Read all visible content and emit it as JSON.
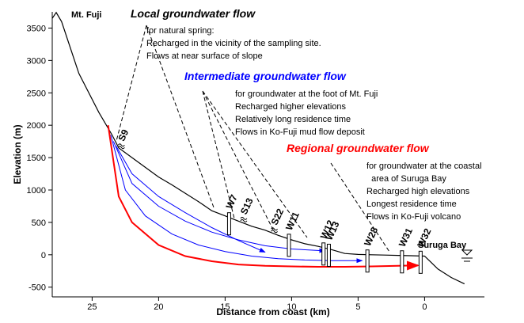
{
  "chart_data": {
    "type": "line",
    "xlabel": "Distance from coast (km)",
    "ylabel": "Elevation (m)",
    "xlim": [
      28,
      -4.5
    ],
    "ylim": [
      -650,
      3750
    ],
    "xticks": [
      25,
      20,
      15,
      10,
      5,
      0
    ],
    "yticks": [
      -500,
      0,
      500,
      1000,
      1500,
      2000,
      2500,
      3000,
      3500
    ],
    "series": [
      {
        "color": "#000000",
        "x": [
          28,
          27.7,
          27.3,
          26,
          24.5,
          23.5,
          23,
          22,
          21,
          20,
          19,
          18,
          17,
          16,
          15,
          14,
          13,
          12,
          11,
          10,
          9,
          8,
          7,
          6,
          5,
          4,
          3,
          2,
          1,
          0,
          -0.5,
          -1,
          -2,
          -3
        ],
        "values": [
          3650,
          3740,
          3600,
          2800,
          2200,
          1850,
          1650,
          1500,
          1350,
          1200,
          1080,
          950,
          820,
          680,
          600,
          520,
          440,
          380,
          300,
          230,
          170,
          130,
          80,
          20,
          5,
          0,
          -5,
          -10,
          -15,
          -20,
          -120,
          -220,
          -350,
          -450
        ]
      },
      {
        "color": "#ff0000",
        "x": [
          23.8,
          23,
          22,
          20,
          18,
          16,
          14,
          12,
          10,
          8,
          6,
          4,
          2,
          0.5
        ],
        "values": [
          2000,
          900,
          500,
          150,
          -20,
          -100,
          -150,
          -170,
          -180,
          -185,
          -185,
          -180,
          -170,
          -165
        ]
      },
      {
        "color": "#0000ff",
        "x": [
          23.6,
          22.5,
          21,
          19,
          17,
          15,
          13,
          11,
          9,
          7,
          4.7
        ],
        "values": [
          1850,
          1000,
          600,
          320,
          150,
          50,
          -20,
          -60,
          -80,
          -90,
          -90
        ]
      },
      {
        "color": "#0000ff",
        "x": [
          23.4,
          22,
          20,
          18,
          16,
          14,
          12,
          10,
          7.5
        ],
        "values": [
          1750,
          1100,
          750,
          520,
          350,
          230,
          140,
          90,
          60
        ]
      },
      {
        "color": "#0000ff",
        "x": [
          23.2,
          22,
          20,
          18,
          16,
          14,
          12
        ],
        "values": [
          1680,
          1250,
          900,
          650,
          420,
          220,
          40
        ]
      }
    ],
    "sites": [
      {
        "label": "S9",
        "x": 22.8,
        "kind": "spring"
      },
      {
        "label": "W7",
        "x": 14.7,
        "kind": "well"
      },
      {
        "label": "S13",
        "x": 13.6,
        "kind": "spring"
      },
      {
        "label": "S22",
        "x": 11.3,
        "kind": "spring"
      },
      {
        "label": "W11",
        "x": 10.2,
        "kind": "well"
      },
      {
        "label": "W12",
        "x": 7.6,
        "kind": "well"
      },
      {
        "label": "W13",
        "x": 7.2,
        "kind": "well"
      },
      {
        "label": "W28",
        "x": 4.3,
        "kind": "well"
      },
      {
        "label": "W31",
        "x": 1.7,
        "kind": "well"
      },
      {
        "label": "W32",
        "x": 0.3,
        "kind": "well"
      }
    ],
    "places": [
      "Mt. Fuji",
      "Suruga Bay"
    ],
    "annotations": [
      {
        "title": "Local groundwater flow",
        "color": "#000000",
        "lines": [
          "for natural spring:",
          "Recharged in the vicinity of the sampling site.",
          "Flows at near surface of slope"
        ]
      },
      {
        "title": "Intermediate groundwater flow",
        "color": "#0000ff",
        "lines": [
          "for groundwater at the foot of Mt. Fuji",
          "Recharged higher elevations",
          "Relatively long residence time",
          "Flows in Ko-Fuji mud flow deposit"
        ]
      },
      {
        "title": "Regional groundwater flow",
        "color": "#ff0000",
        "lines": [
          "for groundwater at the coastal",
          "  area of Suruga Bay",
          "Recharged high elevations",
          "Longest residence time",
          "Flows in Ko-Fuji volcano"
        ]
      }
    ]
  }
}
